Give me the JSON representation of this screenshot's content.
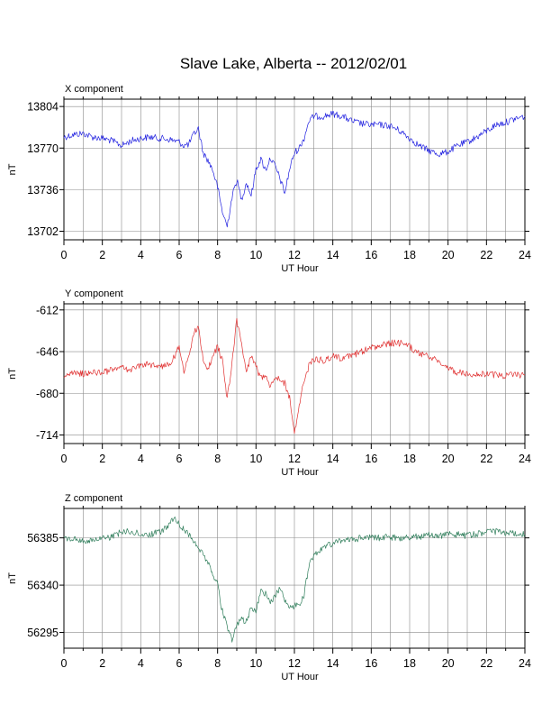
{
  "title": "Slave Lake, Alberta -- 2012/02/01",
  "chart_data": [
    {
      "type": "line",
      "panel_label": "X component",
      "xlabel": "UT Hour",
      "ylabel": "nT",
      "xlim": [
        0,
        24
      ],
      "ylim": [
        13695,
        13810
      ],
      "xticks": [
        "0",
        "2",
        "4",
        "6",
        "8",
        "10",
        "12",
        "14",
        "16",
        "18",
        "20",
        "22",
        "24"
      ],
      "yticks": [
        "13804",
        "13770",
        "13736",
        "13702"
      ],
      "ytick_values": [
        13804,
        13770,
        13736,
        13702
      ],
      "grid": true,
      "color": "#2020e0",
      "x": [
        0,
        0.5,
        1,
        1.5,
        2,
        2.5,
        3,
        3.5,
        4,
        4.5,
        5,
        5.5,
        6,
        6.25,
        6.5,
        6.75,
        7,
        7.25,
        7.5,
        7.75,
        8,
        8.25,
        8.5,
        8.75,
        9,
        9.25,
        9.5,
        9.75,
        10,
        10.25,
        10.5,
        10.75,
        11,
        11.25,
        11.5,
        11.75,
        12,
        12.25,
        12.5,
        12.75,
        13,
        13.5,
        14,
        14.5,
        15,
        15.5,
        16,
        16.5,
        17,
        17.5,
        18,
        18.5,
        19,
        19.5,
        20,
        20.5,
        21,
        21.5,
        22,
        22.5,
        23,
        23.5,
        24
      ],
      "y": [
        13779,
        13781,
        13782,
        13779,
        13778,
        13776,
        13772,
        13776,
        13778,
        13779,
        13778,
        13777,
        13775,
        13772,
        13773,
        13781,
        13786,
        13766,
        13760,
        13752,
        13738,
        13718,
        13706,
        13730,
        13744,
        13728,
        13742,
        13731,
        13753,
        13761,
        13752,
        13762,
        13755,
        13745,
        13733,
        13753,
        13766,
        13770,
        13778,
        13792,
        13796,
        13796,
        13798,
        13796,
        13792,
        13790,
        13789,
        13789,
        13788,
        13784,
        13778,
        13772,
        13768,
        13765,
        13767,
        13772,
        13775,
        13779,
        13784,
        13789,
        13791,
        13794,
        13796
      ]
    },
    {
      "type": "line",
      "panel_label": "Y component",
      "xlabel": "UT Hour",
      "ylabel": "nT",
      "xlim": [
        0,
        24
      ],
      "ylim": [
        -721,
        -607
      ],
      "xticks": [
        "0",
        "2",
        "4",
        "6",
        "8",
        "10",
        "12",
        "14",
        "16",
        "18",
        "20",
        "22",
        "24"
      ],
      "yticks": [
        "-612",
        "-646",
        "-680",
        "-714"
      ],
      "ytick_values": [
        -612,
        -646,
        -680,
        -714
      ],
      "grid": true,
      "color": "#e03030",
      "x": [
        0,
        0.5,
        1,
        1.5,
        2,
        2.5,
        3,
        3.5,
        4,
        4.5,
        5,
        5.5,
        5.75,
        6,
        6.25,
        6.5,
        6.75,
        7,
        7.25,
        7.5,
        7.75,
        8,
        8.25,
        8.5,
        8.75,
        9,
        9.25,
        9.5,
        9.75,
        10,
        10.25,
        10.5,
        10.75,
        11,
        11.25,
        11.5,
        11.75,
        12,
        12.25,
        12.5,
        12.75,
        13,
        13.5,
        14,
        14.5,
        15,
        15.5,
        16,
        16.5,
        17,
        17.5,
        18,
        18.5,
        19,
        19.5,
        20,
        20.5,
        21,
        21.5,
        22,
        22.5,
        23,
        23.5,
        24
      ],
      "y": [
        -665,
        -664,
        -664,
        -663,
        -663,
        -661,
        -659,
        -661,
        -656,
        -657,
        -658,
        -656,
        -650,
        -642,
        -662,
        -650,
        -631,
        -627,
        -652,
        -660,
        -650,
        -642,
        -653,
        -685,
        -655,
        -620,
        -640,
        -663,
        -650,
        -658,
        -668,
        -664,
        -674,
        -666,
        -668,
        -672,
        -684,
        -713,
        -690,
        -670,
        -658,
        -652,
        -653,
        -650,
        -652,
        -649,
        -646,
        -643,
        -641,
        -639,
        -639,
        -642,
        -648,
        -650,
        -654,
        -659,
        -663,
        -664,
        -664,
        -665,
        -665,
        -666,
        -665,
        -665
      ]
    },
    {
      "type": "line",
      "panel_label": "Z component",
      "xlabel": "UT Hour",
      "ylabel": "nT",
      "xlim": [
        0,
        24
      ],
      "ylim": [
        56280,
        56413
      ],
      "xticks": [
        "0",
        "2",
        "4",
        "6",
        "8",
        "10",
        "12",
        "14",
        "16",
        "18",
        "20",
        "22",
        "24"
      ],
      "yticks": [
        "56385",
        "56340",
        "56295"
      ],
      "ytick_values": [
        56385,
        56340,
        56295
      ],
      "grid": true,
      "color": "#2e7d5a",
      "x": [
        0,
        0.5,
        1,
        1.5,
        2,
        2.5,
        3,
        3.5,
        4,
        4.5,
        5,
        5.5,
        5.75,
        6,
        6.5,
        7,
        7.5,
        8,
        8.25,
        8.5,
        8.75,
        9,
        9.25,
        9.5,
        9.75,
        10,
        10.25,
        10.5,
        10.75,
        11,
        11.25,
        11.5,
        11.75,
        12,
        12.25,
        12.5,
        12.75,
        13,
        13.5,
        14,
        14.5,
        15,
        15.5,
        16,
        16.5,
        17,
        17.5,
        18,
        18.5,
        19,
        19.5,
        20,
        20.5,
        21,
        21.5,
        22,
        22.5,
        23,
        23.5,
        24
      ],
      "y": [
        56384,
        56384,
        56382,
        56382,
        56384,
        56386,
        56391,
        56391,
        56389,
        56388,
        56391,
        56397,
        56407,
        56397,
        56388,
        56376,
        56362,
        56340,
        56315,
        56300,
        56287,
        56301,
        56308,
        56305,
        56320,
        56314,
        56336,
        56332,
        56323,
        56330,
        56338,
        56326,
        56320,
        56320,
        56322,
        56330,
        56358,
        56369,
        56375,
        56380,
        56382,
        56383,
        56385,
        56386,
        56385,
        56386,
        56384,
        56386,
        56386,
        56388,
        56387,
        56388,
        56388,
        56387,
        56389,
        56390,
        56391,
        56390,
        56389,
        56388
      ]
    }
  ]
}
